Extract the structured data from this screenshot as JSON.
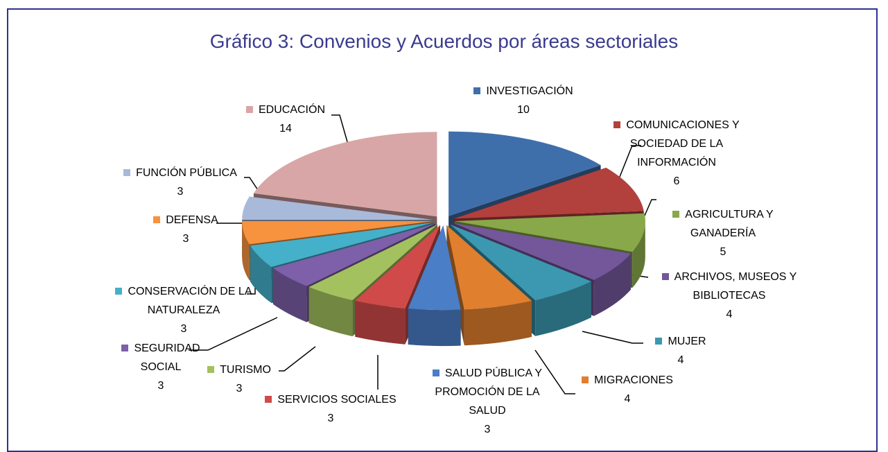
{
  "chart_data": {
    "type": "pie3d",
    "title": "Gráfico 3: Convenios y Acuerdos por áreas sectoriales",
    "categories": [
      "INVESTIGACIÓN",
      "COMUNICACIONES Y SOCIEDAD DE LA INFORMACIÓN",
      "AGRICULTURA Y GANADERÍA",
      "ARCHIVOS, MUSEOS Y BIBLIOTECAS",
      "MUJER",
      "MIGRACIONES",
      "SALUD PÚBLICA Y PROMOCIÓN DE LA SALUD",
      "SERVICIOS SOCIALES",
      "TURISMO",
      "SEGURIDAD SOCIAL",
      "CONSERVACIÓN DE LA NATURALEZA",
      "DEFENSA",
      "FUNCIÓN PÚBLICA",
      "EDUCACIÓN"
    ],
    "values": [
      10,
      6,
      5,
      4,
      4,
      4,
      3,
      3,
      3,
      3,
      3,
      3,
      3,
      14
    ],
    "colors": [
      "#3F6FAA",
      "#B2403D",
      "#88A84A",
      "#74579A",
      "#3B98B0",
      "#E07F2E",
      "#4A7EC7",
      "#D04A4A",
      "#A3C15E",
      "#7E5FA9",
      "#45B0C9",
      "#F7923E",
      "#A9B9DA",
      "#D8A6A6"
    ]
  }
}
